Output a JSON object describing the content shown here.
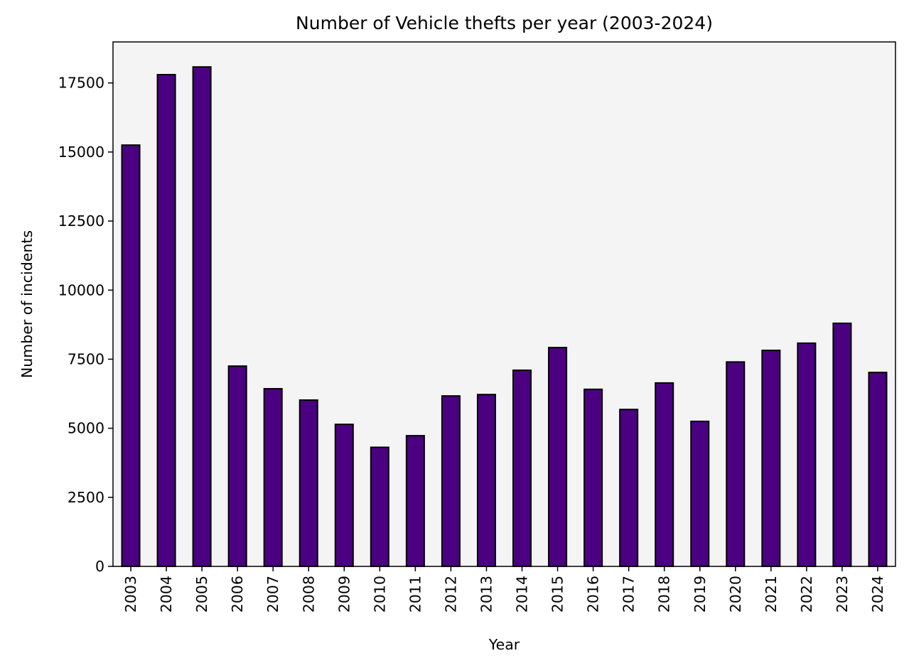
{
  "chart_data": {
    "type": "bar",
    "title": "Number of Vehicle thefts per year (2003-2024)",
    "xlabel": "Year",
    "ylabel": "Number of incidents",
    "categories": [
      "2003",
      "2004",
      "2005",
      "2006",
      "2007",
      "2008",
      "2009",
      "2010",
      "2011",
      "2012",
      "2013",
      "2014",
      "2015",
      "2016",
      "2017",
      "2018",
      "2019",
      "2020",
      "2021",
      "2022",
      "2023",
      "2024"
    ],
    "values": [
      15250,
      17800,
      18080,
      7250,
      6430,
      6020,
      5140,
      4310,
      4730,
      6170,
      6220,
      7100,
      7920,
      6410,
      5680,
      6640,
      5250,
      7400,
      7820,
      8080,
      8800,
      7020
    ],
    "ylim": [
      0,
      18985
    ],
    "yticks": [
      0,
      2500,
      5000,
      7500,
      10000,
      12500,
      15000,
      17500
    ],
    "grid": false,
    "legend": "none",
    "colors": {
      "bar_fill": "#4b0082",
      "bar_edge": "#000000",
      "plot_background": "#f4f4f4",
      "figure_background": "#ffffff"
    }
  }
}
